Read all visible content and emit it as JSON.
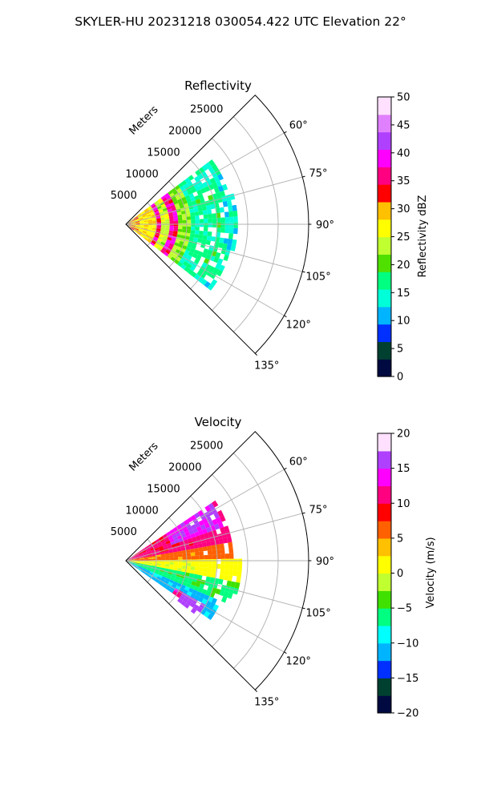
{
  "figure": {
    "suptitle": "SKYLER-HU  20231218  030054.422 UTC Elevation 22°"
  },
  "chart_data": [
    {
      "type": "heatmap",
      "title": "Reflectivity",
      "range_axis_label": "Meters",
      "range_ticks": [
        5000,
        10000,
        15000,
        20000,
        25000
      ],
      "range_limit": [
        0,
        30000
      ],
      "azimuth_range_deg": [
        45,
        135
      ],
      "azimuth_ticks_deg": [
        60,
        75,
        90,
        105,
        120,
        135
      ],
      "grid": true,
      "colorbar": {
        "label": "Reflectivity dBZ",
        "range": [
          0,
          50
        ],
        "ticks": [
          0,
          5,
          10,
          15,
          20,
          25,
          30,
          35,
          40,
          45,
          50
        ]
      },
      "colormap_stops": [
        "#000a40",
        "#004030",
        "#0030ff",
        "#00b4ff",
        "#00ffd8",
        "#00ff80",
        "#50e000",
        "#c0ff30",
        "#ffff00",
        "#ffc000",
        "#ff0000",
        "#ff0080",
        "#ff00ff",
        "#b040ff",
        "#e080ff",
        "#ffe0ff"
      ],
      "bands": [
        {
          "r0": 0,
          "r1": 2500,
          "value": 30
        },
        {
          "r0": 2500,
          "r1": 4800,
          "value": 28
        },
        {
          "r0": 4800,
          "r1": 5800,
          "value": 37
        },
        {
          "r0": 5800,
          "r1": 7500,
          "value": 24
        },
        {
          "r0": 7500,
          "r1": 8500,
          "value": 37
        },
        {
          "r0": 8500,
          "r1": 11000,
          "value": 22
        },
        {
          "r0": 11000,
          "r1": 16000,
          "value": 16
        },
        {
          "r0": 16000,
          "r1": 18500,
          "value": 14
        }
      ]
    },
    {
      "type": "heatmap",
      "title": "Velocity",
      "range_axis_label": "Meters",
      "range_ticks": [
        5000,
        10000,
        15000,
        20000,
        25000
      ],
      "range_limit": [
        0,
        30000
      ],
      "azimuth_range_deg": [
        45,
        135
      ],
      "azimuth_ticks_deg": [
        60,
        75,
        90,
        105,
        120,
        135
      ],
      "grid": true,
      "colorbar": {
        "label": "Velocity (m/s)",
        "range": [
          -20,
          20
        ],
        "ticks": [
          -20,
          -15,
          -10,
          -5,
          0,
          5,
          10,
          15,
          20
        ]
      },
      "colormap_stops": [
        "#000a40",
        "#004030",
        "#0030ff",
        "#00b4ff",
        "#00ffff",
        "#00ff80",
        "#40e000",
        "#c0ff30",
        "#ffff00",
        "#ffc000",
        "#ff6000",
        "#ff0000",
        "#ff0080",
        "#ff00ff",
        "#b040ff",
        "#ffe0ff"
      ],
      "sectors": [
        {
          "az0": 55,
          "az1": 80,
          "r0": 0,
          "r1": 18000,
          "value": 11
        },
        {
          "az0": 55,
          "az1": 70,
          "r0": 8000,
          "r1": 17000,
          "value": 15
        },
        {
          "az0": 80,
          "az1": 90,
          "r0": 0,
          "r1": 17500,
          "value": 6
        },
        {
          "az0": 90,
          "az1": 100,
          "r0": 0,
          "r1": 19000,
          "value": 1
        },
        {
          "az0": 100,
          "az1": 112,
          "r0": 0,
          "r1": 19000,
          "value": -6
        },
        {
          "az0": 112,
          "az1": 125,
          "r0": 0,
          "r1": 17000,
          "value": -11
        },
        {
          "az0": 118,
          "az1": 126,
          "r0": 9000,
          "r1": 15000,
          "value": 13
        },
        {
          "az0": 120,
          "az1": 127,
          "r0": 11000,
          "r1": 15000,
          "value": 16
        }
      ]
    }
  ]
}
